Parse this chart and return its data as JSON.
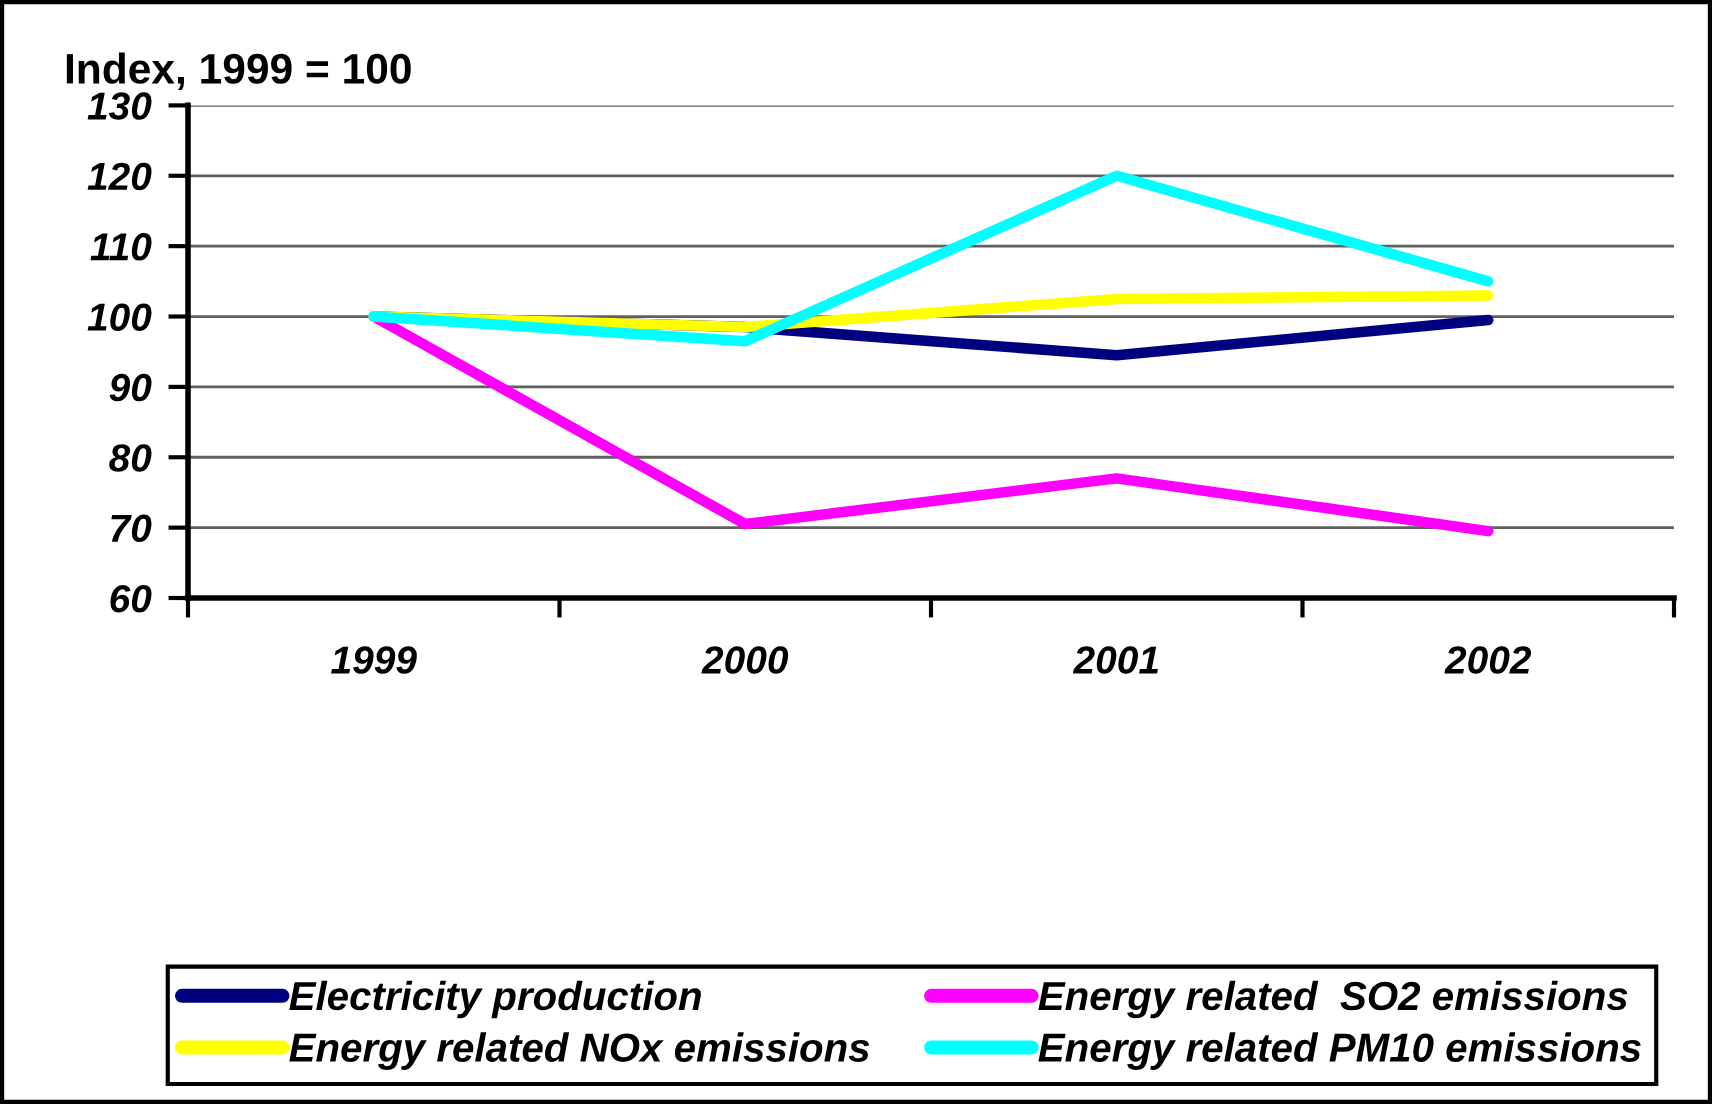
{
  "chart_data": {
    "type": "line",
    "ylabel": "Index, 1999 = 100",
    "categories": [
      "1999",
      "2000",
      "2001",
      "2002"
    ],
    "series": [
      {
        "name": "Electricity production",
        "color": "#000080",
        "values": [
          100,
          98.5,
          94.5,
          99.5
        ]
      },
      {
        "name": "Energy related  SO2 emissions",
        "color": "#ff00ff",
        "values": [
          100,
          70.5,
          77,
          69.5
        ]
      },
      {
        "name": "Energy related NOx emissions",
        "color": "#ffff00",
        "values": [
          100,
          98.5,
          102.5,
          103
        ]
      },
      {
        "name": "Energy related PM10 emissions",
        "color": "#00ffff",
        "values": [
          100,
          96.5,
          120,
          105
        ]
      }
    ],
    "ylim": [
      60,
      130
    ],
    "yticks": [
      60,
      70,
      80,
      90,
      100,
      110,
      120,
      130
    ],
    "grid": "y",
    "legend": "bottom",
    "line_style": "solid"
  }
}
